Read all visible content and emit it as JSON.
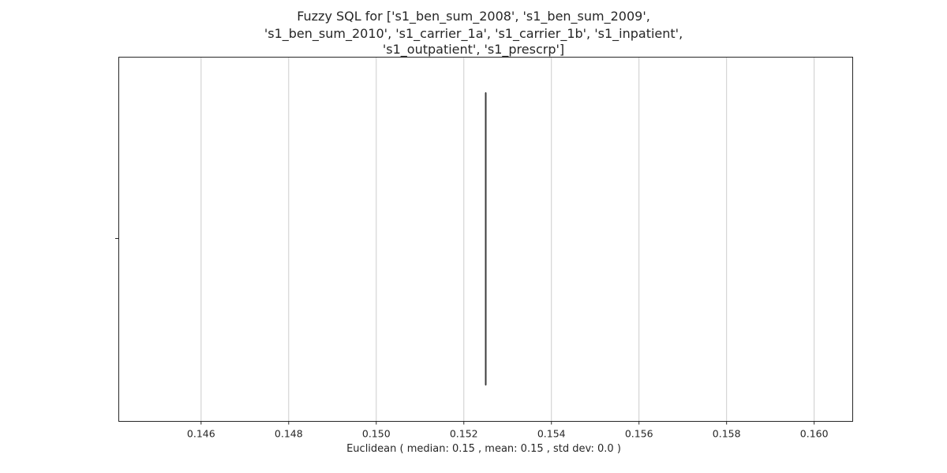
{
  "chart_data": {
    "type": "box",
    "title_lines": [
      "Fuzzy SQL for ['s1_ben_sum_2008', 's1_ben_sum_2009',",
      "'s1_ben_sum_2010', 's1_carrier_1a', 's1_carrier_1b', 's1_inpatient',",
      "'s1_outpatient', 's1_prescrp']"
    ],
    "xlabel": "Euclidean ( median: 0.15 , mean: 0.15 , std dev: 0.0 )",
    "ylabel": "",
    "xlim": [
      0.14412,
      0.16088
    ],
    "xticks": [
      0.146,
      0.148,
      0.15,
      0.152,
      0.154,
      0.156,
      0.158,
      0.16
    ],
    "xtick_labels": [
      "0.146",
      "0.148",
      "0.150",
      "0.152",
      "0.154",
      "0.156",
      "0.158",
      "0.160"
    ],
    "grid": "vertical",
    "box": {
      "min": 0.1525,
      "q1": 0.1525,
      "median": 0.1525,
      "q3": 0.1525,
      "max": 0.1525
    },
    "colors": {
      "grid": "#cccccc",
      "frame": "#262626",
      "box_line": "#3c3c3c",
      "text": "#262626"
    }
  }
}
